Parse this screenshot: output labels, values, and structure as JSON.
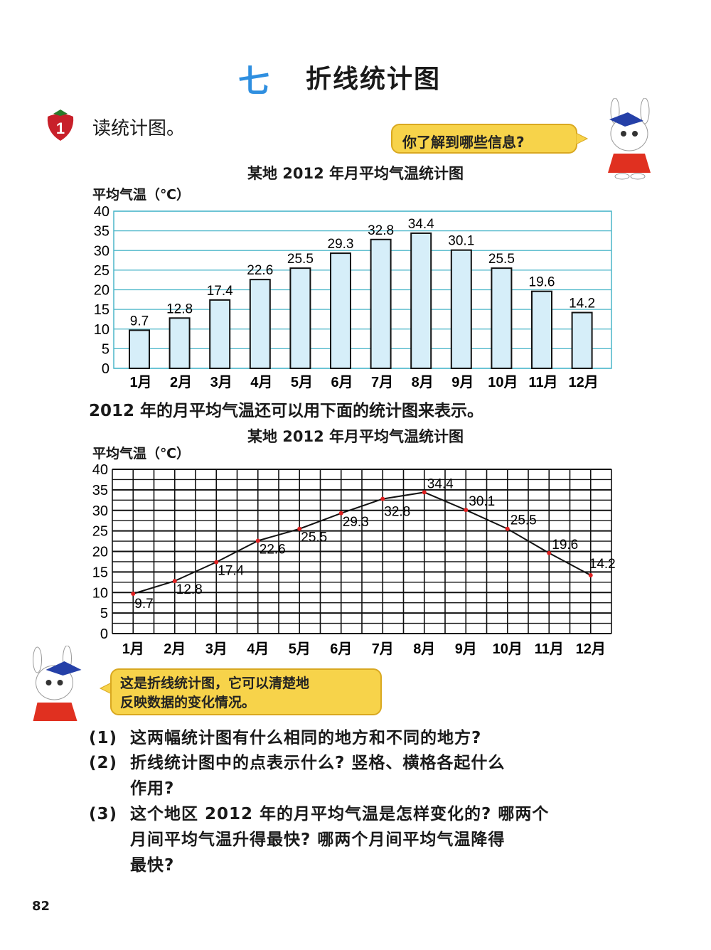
{
  "header": {
    "chapter_number": "七",
    "chapter_title": "折线统计图"
  },
  "exercise": {
    "number": "1",
    "label": "读统计图。"
  },
  "bubble_top": "你了解到哪些信息?",
  "sentence": "2012 年的月平均气温还可以用下面的统计图来表示。",
  "bubble_bottom": [
    "这是折线统计图，它可以清楚地",
    "反映数据的变化情况。"
  ],
  "questions": [
    {
      "num": "(1)",
      "lines": [
        "这两幅统计图有什么相同的地方和不同的地方?"
      ]
    },
    {
      "num": "(2)",
      "lines": [
        "折线统计图中的点表示什么? 竖格、横格各起什么",
        "作用?"
      ]
    },
    {
      "num": "(3)",
      "lines": [
        "这个地区 2012 年的月平均气温是怎样变化的? 哪两个",
        "月间平均气温升得最快? 哪两个月间平均气温降得",
        "最快?"
      ]
    }
  ],
  "page_number": "82",
  "chart_data": [
    {
      "type": "bar",
      "title": "某地 2012 年月平均气温统计图",
      "ylabel": "平均气温（℃）",
      "xlabel": "",
      "categories": [
        "1月",
        "2月",
        "3月",
        "4月",
        "5月",
        "6月",
        "7月",
        "8月",
        "9月",
        "10月",
        "11月",
        "12月"
      ],
      "values": [
        9.7,
        12.8,
        17.4,
        22.6,
        25.5,
        29.3,
        32.8,
        34.4,
        30.1,
        25.5,
        19.6,
        14.2
      ],
      "data_labels": [
        "9.7",
        "12.8",
        "17.4",
        "22.6",
        "25.5",
        "29.3",
        "32.8",
        "34.4",
        "30.1",
        "25.5",
        "19.6",
        "14.2"
      ],
      "ylim": [
        0,
        40
      ],
      "yticks": [
        "0",
        "5",
        "10",
        "15",
        "20",
        "25",
        "30",
        "35",
        "40"
      ],
      "grid": true,
      "bar_color": "#d6eef9",
      "grid_color": "#4bb6c9"
    },
    {
      "type": "line",
      "title": "某地 2012 年月平均气温统计图",
      "ylabel": "平均气温（℃）",
      "xlabel": "",
      "categories": [
        "1月",
        "2月",
        "3月",
        "4月",
        "5月",
        "6月",
        "7月",
        "8月",
        "9月",
        "10月",
        "11月",
        "12月"
      ],
      "values": [
        9.7,
        12.8,
        17.4,
        22.6,
        25.5,
        29.3,
        32.8,
        34.4,
        30.1,
        25.5,
        19.6,
        14.2
      ],
      "data_labels": [
        "9.7",
        "12.8",
        "17.4",
        "22.6",
        "25.5",
        "29.3",
        "32.8",
        "34.4",
        "30.1",
        "25.5",
        "19.6",
        "14.2"
      ],
      "ylim": [
        0,
        40
      ],
      "yticks": [
        "0",
        "5",
        "10",
        "15",
        "20",
        "25",
        "30",
        "35",
        "40"
      ],
      "grid": true,
      "point_color": "#e02020"
    }
  ]
}
